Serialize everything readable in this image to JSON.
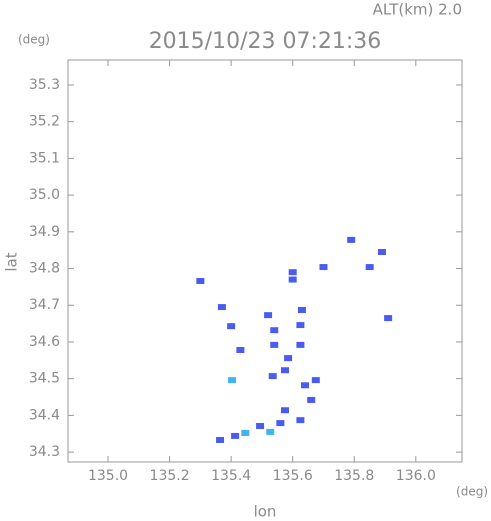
{
  "chart_data": {
    "type": "scatter",
    "title": "2015/10/23 07:21:36",
    "subtitle": "ALT(km) 2.0",
    "y_unit": "(deg)",
    "x_unit": "(deg)",
    "xlabel": "lon",
    "ylabel": "lat",
    "xlim": [
      134.87,
      136.15
    ],
    "ylim": [
      34.273,
      35.368
    ],
    "xticks": [
      {
        "value": 135,
        "label": "135.0"
      },
      135.2,
      135.4,
      135.6,
      135.8,
      {
        "value": 136,
        "label": "136.0"
      }
    ],
    "yticks": [
      34.3,
      34.4,
      34.5,
      34.6,
      34.7,
      34.8,
      34.9,
      {
        "value": 35,
        "label": "35.0"
      },
      35.1,
      35.2,
      35.3
    ],
    "series": [
      {
        "color": "#4a5cf0",
        "x": [
          135.3,
          135.79,
          135.89,
          135.85,
          135.7,
          135.6,
          135.6,
          135.91,
          135.37,
          135.4,
          135.52,
          135.63,
          135.54,
          135.625,
          135.43,
          135.54,
          135.585,
          135.625,
          135.535,
          135.575,
          135.64,
          135.675,
          135.66,
          135.575,
          135.625,
          135.56,
          135.494,
          135.413,
          135.364
        ],
        "y": [
          34.766,
          34.878,
          34.845,
          34.804,
          34.804,
          34.79,
          34.77,
          34.665,
          34.695,
          34.643,
          34.673,
          34.687,
          34.632,
          34.646,
          34.578,
          34.592,
          34.556,
          34.592,
          34.507,
          34.523,
          34.482,
          34.496,
          34.442,
          34.414,
          34.387,
          34.379,
          34.371,
          34.344,
          34.333
        ]
      },
      {
        "color": "#3fb4f0",
        "x": [
          135.403,
          135.446,
          135.527
        ],
        "y": [
          34.496,
          34.352,
          34.355
        ]
      }
    ]
  }
}
